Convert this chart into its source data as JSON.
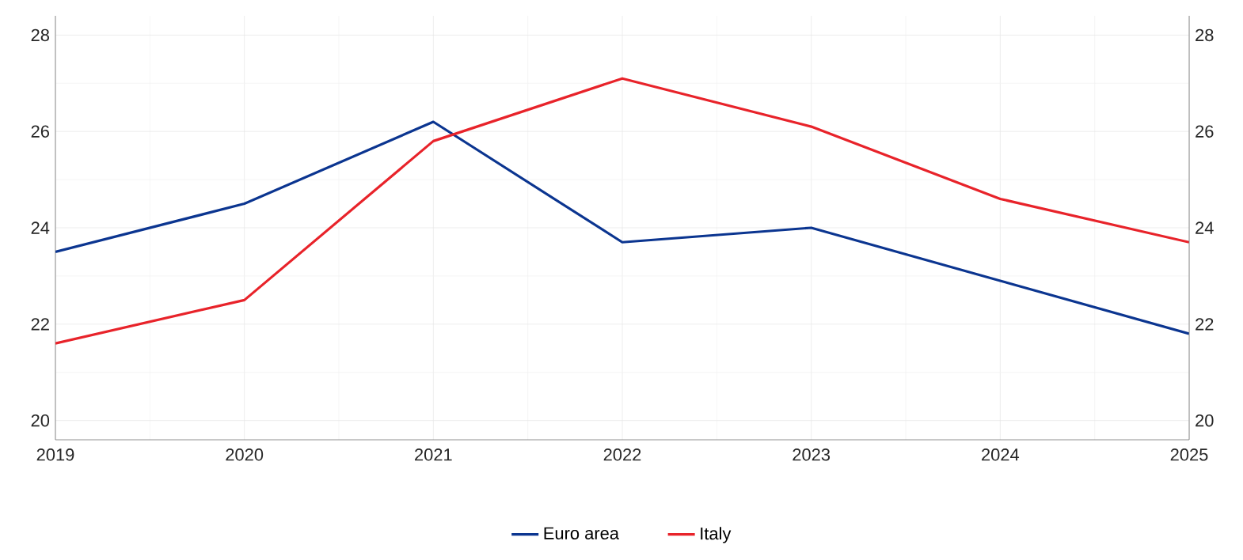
{
  "chart_data": {
    "type": "line",
    "x": [
      2019,
      2020,
      2021,
      2022,
      2023,
      2024,
      2025
    ],
    "series": [
      {
        "name": "Euro area",
        "color": "#0b3590",
        "values": [
          23.5,
          24.5,
          26.2,
          23.7,
          24.0,
          22.9,
          21.8
        ]
      },
      {
        "name": "Italy",
        "color": "#e8232a",
        "values": [
          21.6,
          22.5,
          25.8,
          27.1,
          26.1,
          24.6,
          23.7
        ]
      }
    ],
    "xlim": [
      2019,
      2025
    ],
    "xticks": [
      2019,
      2020,
      2021,
      2022,
      2023,
      2024,
      2025
    ],
    "ylim": [
      19.6,
      28.4
    ],
    "yticks": [
      20,
      22,
      24,
      26,
      28
    ],
    "y2lim": [
      19.6,
      28.4
    ],
    "y2ticks": [
      20,
      22,
      24,
      26,
      28
    ],
    "grid": true,
    "legend": "bottom",
    "marker": "none",
    "line_style": "solid"
  }
}
